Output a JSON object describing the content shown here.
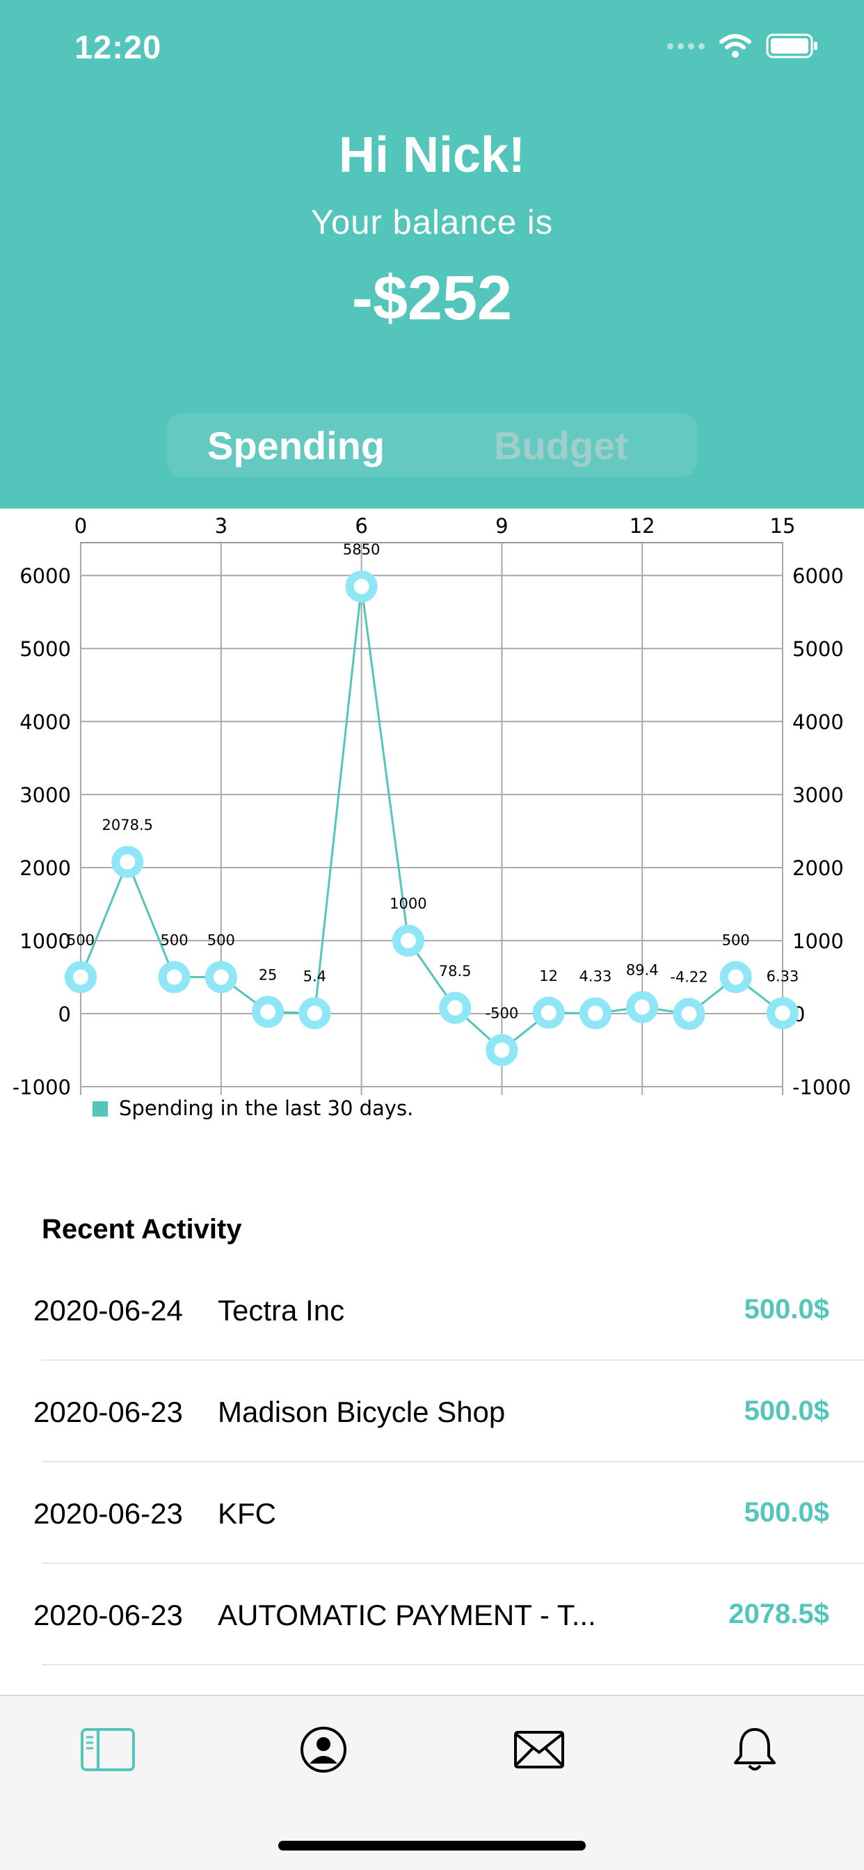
{
  "status": {
    "time": "12:20",
    "icons": [
      "signal-dots-icon",
      "wifi-icon",
      "battery-icon"
    ]
  },
  "header": {
    "greeting": "Hi Nick!",
    "balance_label": "Your balance is",
    "balance_value": "-$252",
    "background_color": "#53c5ba"
  },
  "segmented": {
    "items": [
      {
        "label": "Spending",
        "selected": true
      },
      {
        "label": "Budget",
        "selected": false
      }
    ]
  },
  "chart_data": {
    "type": "line",
    "x": [
      0,
      1,
      2,
      3,
      4,
      5,
      6,
      7,
      8,
      9,
      10,
      11,
      12,
      13,
      14,
      15
    ],
    "series": [
      {
        "name": "Spending in the last 30 days.",
        "values": [
          500,
          2078.5,
          500,
          500,
          25,
          5.4,
          5850,
          1000,
          78.5,
          -500,
          12,
          4.33,
          89.4,
          -4.22,
          500,
          6.33
        ],
        "labels": [
          "500",
          "2078.5",
          "500",
          "500",
          "25",
          "5.4",
          "5850",
          "1000",
          "78.5",
          "-500",
          "12",
          "4.33",
          "89.4",
          "-4.22",
          "500",
          "6.33"
        ]
      }
    ],
    "xticks": [
      0,
      3,
      6,
      9,
      12,
      15
    ],
    "yticks": [
      -1000,
      0,
      1000,
      2000,
      3000,
      4000,
      5000,
      6000
    ],
    "xlim": [
      0,
      15
    ],
    "ylim": [
      -1000,
      6450
    ],
    "grid": true,
    "legend_position": "bottom-left",
    "line_color": "#53c5ba",
    "marker_color": "#8ee6f7"
  },
  "activity": {
    "title": "Recent Activity",
    "items": [
      {
        "date": "2020-06-24",
        "merchant": "Tectra Inc",
        "amount": "500.0$"
      },
      {
        "date": "2020-06-23",
        "merchant": "Madison Bicycle Shop",
        "amount": "500.0$"
      },
      {
        "date": "2020-06-23",
        "merchant": "KFC",
        "amount": "500.0$"
      },
      {
        "date": "2020-06-23",
        "merchant": "AUTOMATIC PAYMENT - T...",
        "amount": "2078.5$"
      }
    ],
    "accent_color": "#53c5ba"
  },
  "tabbar": {
    "items": [
      {
        "icon": "book-icon",
        "active": true
      },
      {
        "icon": "profile-icon",
        "active": false
      },
      {
        "icon": "mail-icon",
        "active": false
      },
      {
        "icon": "bell-icon",
        "active": false
      }
    ]
  }
}
